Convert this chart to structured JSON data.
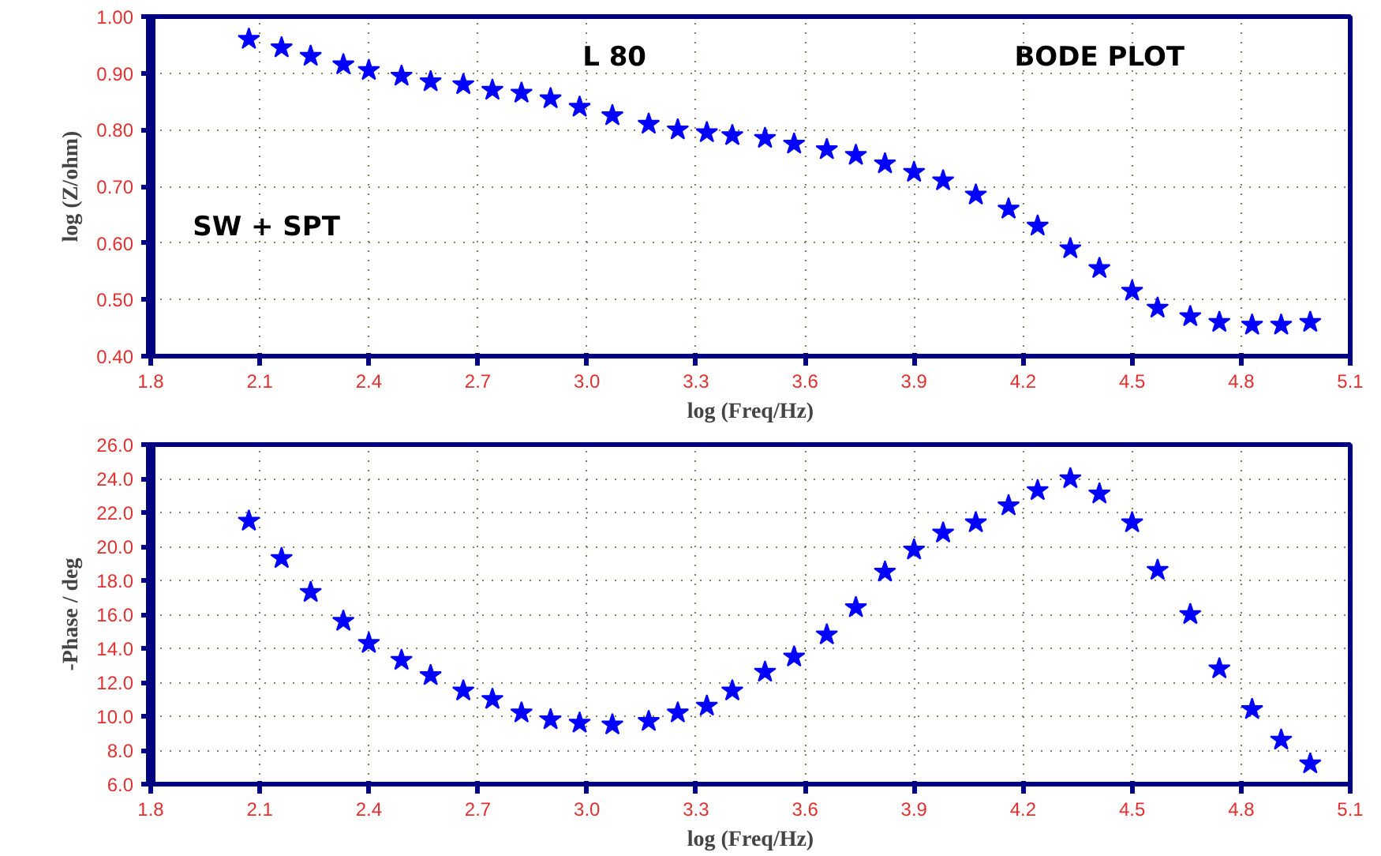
{
  "chart_data": [
    {
      "type": "scatter",
      "xlabel": "log (Freq/Hz)",
      "ylabel": "log (Z/ohm)",
      "annotations": [
        "L 80",
        "BODE PLOT",
        "SW + SPT"
      ],
      "x": [
        2.07,
        2.16,
        2.24,
        2.33,
        2.4,
        2.49,
        2.57,
        2.66,
        2.74,
        2.82,
        2.9,
        2.98,
        3.07,
        3.17,
        3.25,
        3.33,
        3.4,
        3.49,
        3.57,
        3.66,
        3.74,
        3.82,
        3.9,
        3.98,
        4.07,
        4.16,
        4.24,
        4.33,
        4.41,
        4.5,
        4.57,
        4.66,
        4.74,
        4.83,
        4.91,
        4.99
      ],
      "series": [
        {
          "color": "#0000ff",
          "values": [
            0.96,
            0.945,
            0.93,
            0.915,
            0.905,
            0.895,
            0.885,
            0.88,
            0.87,
            0.865,
            0.855,
            0.84,
            0.825,
            0.81,
            0.8,
            0.795,
            0.79,
            0.785,
            0.775,
            0.765,
            0.755,
            0.74,
            0.725,
            0.71,
            0.685,
            0.66,
            0.63,
            0.59,
            0.555,
            0.515,
            0.485,
            0.47,
            0.46,
            0.455,
            0.455,
            0.46
          ]
        }
      ],
      "xlim": [
        1.8,
        5.1
      ],
      "xticks": [
        1.8,
        2.1,
        2.4,
        2.7,
        {
          "value": 3,
          "label": "3.0"
        },
        3.3,
        3.6,
        3.9,
        4.2,
        4.5,
        4.8,
        5.1
      ],
      "ylim": [
        0.4,
        1.0
      ],
      "yticks": [
        {
          "value": 0.4,
          "label": "0.40"
        },
        {
          "value": 0.5,
          "label": "0.50"
        },
        {
          "value": 0.6,
          "label": "0.60"
        },
        {
          "value": 0.7,
          "label": "0.70"
        },
        {
          "value": 0.8,
          "label": "0.80"
        },
        {
          "value": 0.9,
          "label": "0.90"
        },
        {
          "value": 1.0,
          "label": "1.00"
        }
      ],
      "grid": true,
      "marker": "star"
    },
    {
      "type": "scatter",
      "xlabel": "log (Freq/Hz)",
      "ylabel": "-Phase / deg",
      "x": [
        2.07,
        2.16,
        2.24,
        2.33,
        2.4,
        2.49,
        2.57,
        2.66,
        2.74,
        2.82,
        2.9,
        2.98,
        3.07,
        3.17,
        3.25,
        3.33,
        3.4,
        3.49,
        3.57,
        3.66,
        3.74,
        3.82,
        3.9,
        3.98,
        4.07,
        4.16,
        4.24,
        4.33,
        4.41,
        4.5,
        4.57,
        4.66,
        4.74,
        4.83,
        4.91,
        4.99
      ],
      "series": [
        {
          "color": "#0000ff",
          "values": [
            21.5,
            19.3,
            17.3,
            15.6,
            14.3,
            13.3,
            12.4,
            11.5,
            11.0,
            10.2,
            9.8,
            9.6,
            9.5,
            9.7,
            10.2,
            10.6,
            11.5,
            12.6,
            13.5,
            14.8,
            16.4,
            18.5,
            19.8,
            20.8,
            21.4,
            22.4,
            23.3,
            24.0,
            23.1,
            21.4,
            18.6,
            16.0,
            12.8,
            10.4,
            8.6,
            7.2
          ]
        }
      ],
      "xlim": [
        1.8,
        5.1
      ],
      "xticks": [
        1.8,
        2.1,
        2.4,
        2.7,
        {
          "value": 3,
          "label": "3.0"
        },
        3.3,
        3.6,
        3.9,
        4.2,
        4.5,
        4.8,
        5.1
      ],
      "ylim": [
        6,
        26
      ],
      "yticks": [
        {
          "value": 6,
          "label": "6.0"
        },
        {
          "value": 8,
          "label": "8.0"
        },
        {
          "value": 10,
          "label": "10.0"
        },
        {
          "value": 12,
          "label": "12.0"
        },
        {
          "value": 14,
          "label": "14.0"
        },
        {
          "value": 16,
          "label": "16.0"
        },
        {
          "value": 18,
          "label": "18.0"
        },
        {
          "value": 20,
          "label": "20.0"
        },
        {
          "value": 22,
          "label": "22.0"
        },
        {
          "value": 24,
          "label": "24.0"
        },
        {
          "value": 26,
          "label": "26.0"
        }
      ],
      "grid": true,
      "marker": "star"
    }
  ]
}
